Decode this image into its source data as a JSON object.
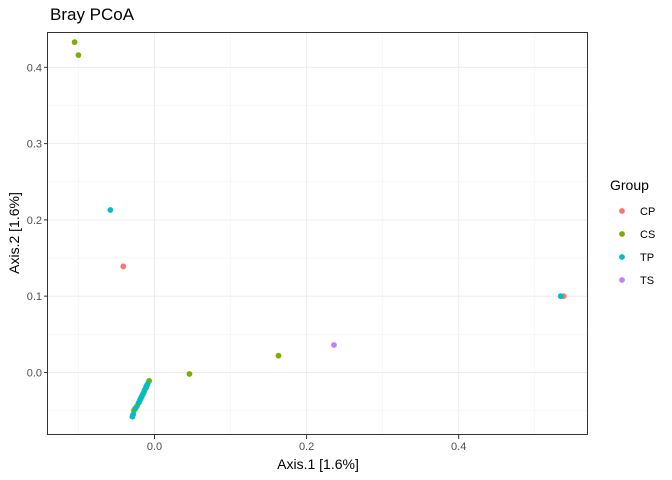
{
  "chart_data": {
    "type": "scatter",
    "title": "Bray PCoA",
    "xlabel": "Axis.1   [1.6%]",
    "ylabel": "Axis.2   [1.6%]",
    "xlim": [
      -0.14,
      0.57
    ],
    "ylim": [
      -0.082,
      0.445
    ],
    "x_ticks": [
      0.0,
      0.2,
      0.4
    ],
    "x_tick_labels": [
      "0.0",
      "0.2",
      "0.4"
    ],
    "y_ticks": [
      0.0,
      0.1,
      0.2,
      0.3,
      0.4
    ],
    "y_tick_labels": [
      "0.0",
      "0.1",
      "0.2",
      "0.3",
      "0.4"
    ],
    "grid": true,
    "legend_position": "right",
    "legend": {
      "title": "Group",
      "entries": [
        {
          "label": "CP",
          "color": "#F8766D"
        },
        {
          "label": "CS",
          "color": "#7CAE00"
        },
        {
          "label": "TP",
          "color": "#00BFC4"
        },
        {
          "label": "TS",
          "color": "#C77CFF"
        }
      ]
    },
    "series": [
      {
        "name": "CP",
        "color": "#F8766D",
        "points": [
          [
            -0.041,
            0.139
          ],
          [
            0.538,
            0.1
          ],
          [
            -0.026,
            -0.048
          ],
          [
            -0.02,
            -0.039
          ],
          [
            -0.016,
            -0.03
          ],
          [
            -0.011,
            -0.02
          ]
        ]
      },
      {
        "name": "CS",
        "color": "#7CAE00",
        "points": [
          [
            -0.105,
            0.433
          ],
          [
            -0.1,
            0.416
          ],
          [
            0.046,
            -0.002
          ],
          [
            0.163,
            0.022
          ],
          [
            -0.027,
            -0.05
          ],
          [
            -0.023,
            -0.044
          ],
          [
            -0.018,
            -0.034
          ],
          [
            -0.014,
            -0.026
          ],
          [
            -0.01,
            -0.017
          ],
          [
            -0.007,
            -0.011
          ]
        ]
      },
      {
        "name": "TP",
        "color": "#00BFC4",
        "points": [
          [
            -0.058,
            0.213
          ],
          [
            0.534,
            0.1
          ],
          [
            -0.029,
            -0.058
          ],
          [
            -0.028,
            -0.055
          ],
          [
            -0.025,
            -0.047
          ],
          [
            -0.021,
            -0.04
          ],
          [
            -0.019,
            -0.036
          ],
          [
            -0.017,
            -0.032
          ],
          [
            -0.015,
            -0.028
          ],
          [
            -0.013,
            -0.023
          ],
          [
            -0.011,
            -0.019
          ],
          [
            -0.009,
            -0.015
          ]
        ]
      },
      {
        "name": "TS",
        "color": "#C77CFF",
        "points": [
          [
            0.236,
            0.036
          ]
        ]
      }
    ]
  }
}
